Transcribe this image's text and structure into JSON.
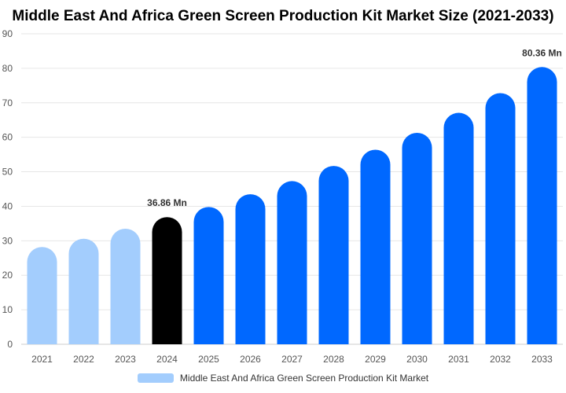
{
  "chart_data": {
    "type": "bar",
    "title": "Middle East And Africa Green Screen Production Kit Market Size (2021-2033)",
    "categories": [
      "2021",
      "2022",
      "2023",
      "2024",
      "2025",
      "2026",
      "2027",
      "2028",
      "2029",
      "2030",
      "2031",
      "2032",
      "2033"
    ],
    "series": [
      {
        "name": "Middle East And Africa Green Screen Production Kit Market",
        "values": [
          28.2,
          30.6,
          33.5,
          36.86,
          39.8,
          43.5,
          47.3,
          51.7,
          56.4,
          61.3,
          67.1,
          72.8,
          80.36
        ]
      }
    ],
    "bar_colors": [
      "#a3cdfd",
      "#a3cdfd",
      "#a3cdfd",
      "#000000",
      "#0068ff",
      "#0068ff",
      "#0068ff",
      "#0068ff",
      "#0068ff",
      "#0068ff",
      "#0068ff",
      "#0068ff",
      "#0068ff"
    ],
    "data_labels": [
      {
        "category": "2024",
        "text": "36.86 Mn"
      },
      {
        "category": "2033",
        "text": "80.36 Mn"
      }
    ],
    "ylim": [
      0,
      90
    ],
    "yticks": [
      0,
      10,
      20,
      30,
      40,
      50,
      60,
      70,
      80,
      90
    ],
    "xlabel": "",
    "ylabel": "",
    "grid": "horizontal",
    "legend_position": "bottom",
    "legend_color": "#a3cdfd"
  }
}
